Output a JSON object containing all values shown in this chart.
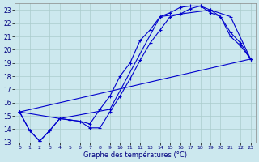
{
  "xlabel": "Graphe des températures (°C)",
  "xlim": [
    -0.5,
    23.5
  ],
  "ylim": [
    13,
    23.5
  ],
  "yticks": [
    13,
    14,
    15,
    16,
    17,
    18,
    19,
    20,
    21,
    22,
    23
  ],
  "xticks": [
    0,
    1,
    2,
    3,
    4,
    5,
    6,
    7,
    8,
    9,
    10,
    11,
    12,
    13,
    14,
    15,
    16,
    17,
    18,
    19,
    20,
    21,
    22,
    23
  ],
  "bg_color": "#cce8ee",
  "grid_color": "#aacccc",
  "line_color": "#0000cc",
  "line1_x": [
    0,
    1,
    2,
    3,
    4,
    5,
    6,
    7,
    8,
    9,
    10,
    11,
    12,
    13,
    14,
    15,
    16,
    17,
    18,
    19,
    20,
    21,
    22,
    23
  ],
  "line1_y": [
    15.3,
    13.9,
    13.1,
    13.9,
    14.8,
    14.7,
    14.6,
    14.1,
    14.1,
    15.3,
    16.5,
    17.8,
    19.2,
    20.5,
    21.5,
    22.5,
    22.7,
    23.1,
    23.3,
    23.0,
    22.5,
    21.0,
    20.3,
    19.3
  ],
  "line2_x": [
    0,
    1,
    2,
    3,
    4,
    5,
    6,
    7,
    8,
    9,
    10,
    11,
    12,
    13,
    14,
    15,
    16,
    17,
    18,
    19,
    20,
    21,
    22,
    23
  ],
  "line2_y": [
    15.3,
    13.9,
    13.1,
    13.9,
    14.8,
    14.7,
    14.6,
    14.4,
    15.5,
    16.5,
    18.0,
    19.0,
    20.7,
    21.5,
    22.5,
    22.8,
    23.2,
    23.3,
    23.3,
    22.8,
    22.5,
    21.3,
    20.5,
    19.3
  ],
  "line3_x": [
    0,
    4,
    9,
    14,
    19,
    21,
    23
  ],
  "line3_y": [
    15.3,
    14.8,
    15.5,
    22.5,
    23.0,
    22.5,
    19.3
  ],
  "line4_x": [
    0,
    23
  ],
  "line4_y": [
    15.3,
    19.3
  ]
}
